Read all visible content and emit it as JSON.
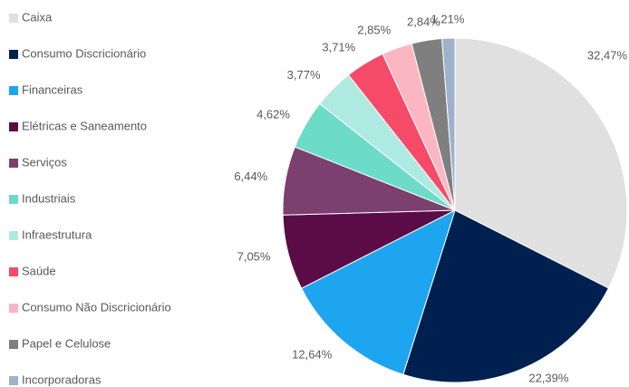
{
  "chart_data": {
    "type": "pie",
    "categories": [
      "Caixa",
      "Consumo Discricionário",
      "Financeiras",
      "Elétricas e Saneamento",
      "Serviços",
      "Industriais",
      "Infraestrutura",
      "Saúde",
      "Consumo Não Discricionário",
      "Papel e Celulose",
      "Incorporadoras"
    ],
    "values": [
      32.47,
      22.39,
      12.64,
      7.05,
      6.44,
      4.62,
      3.77,
      3.71,
      2.85,
      2.84,
      1.21
    ],
    "value_labels": [
      "32,47%",
      "22,39%",
      "12,64%",
      "7,05%",
      "6,44%",
      "4,62%",
      "3,77%",
      "3,71%",
      "2,85%",
      "2,84%",
      "1,21%"
    ],
    "colors": [
      "#e0e0e0",
      "#002050",
      "#1da5ef",
      "#5b0b46",
      "#7b3f70",
      "#6cdbc8",
      "#aeeae2",
      "#f64b68",
      "#fcb6c2",
      "#7f7f7f",
      "#9fb2cc"
    ],
    "legend": "left"
  }
}
